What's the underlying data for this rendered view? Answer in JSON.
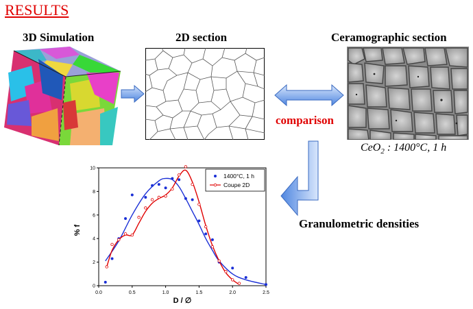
{
  "title": "RESULTS",
  "panels": {
    "sim3d": {
      "label": "3D Simulation"
    },
    "section2d": {
      "label": "2D section"
    },
    "cerama": {
      "label": "Ceramographic section",
      "caption_prefix": "CeO",
      "caption_sub": "2",
      "caption_rest": " : 1400°C, 1 h"
    }
  },
  "comparison_label": "comparison",
  "granulometric_label": "Granulometric densities",
  "chart_data": {
    "type": "line",
    "xlabel": "D / ∅",
    "ylabel": "% f",
    "xlim": [
      0,
      2.5
    ],
    "ylim": [
      0,
      10
    ],
    "xticks": [
      "0.0",
      "0.5",
      "1.0",
      "1.5",
      "2.0",
      "2.5"
    ],
    "yticks": [
      "0",
      "2",
      "4",
      "6",
      "8",
      "10"
    ],
    "legend_position": "top-right",
    "series": [
      {
        "name": "1400°C, 1 h",
        "color": "#1a2fd6",
        "marker": "dot",
        "points": [
          [
            0.1,
            0.3
          ],
          [
            0.2,
            2.3
          ],
          [
            0.3,
            4.0
          ],
          [
            0.4,
            5.7
          ],
          [
            0.5,
            7.7
          ],
          [
            0.7,
            7.5
          ],
          [
            0.8,
            8.5
          ],
          [
            0.9,
            8.6
          ],
          [
            1.0,
            8.3
          ],
          [
            1.1,
            9.1
          ],
          [
            1.2,
            9.0
          ],
          [
            1.3,
            7.4
          ],
          [
            1.4,
            7.3
          ],
          [
            1.5,
            5.5
          ],
          [
            1.6,
            4.4
          ],
          [
            1.7,
            3.9
          ],
          [
            1.8,
            2.0
          ],
          [
            2.0,
            1.5
          ],
          [
            2.2,
            0.7
          ],
          [
            2.5,
            0.1
          ]
        ],
        "fit": [
          [
            0.1,
            2.1
          ],
          [
            0.3,
            3.8
          ],
          [
            0.5,
            6.0
          ],
          [
            0.7,
            7.8
          ],
          [
            0.9,
            8.9
          ],
          [
            1.0,
            9.1
          ],
          [
            1.1,
            9.0
          ],
          [
            1.2,
            8.4
          ],
          [
            1.3,
            7.4
          ],
          [
            1.4,
            6.3
          ],
          [
            1.5,
            5.2
          ],
          [
            1.6,
            4.0
          ],
          [
            1.7,
            3.0
          ],
          [
            1.8,
            2.1
          ],
          [
            2.0,
            1.0
          ],
          [
            2.2,
            0.5
          ],
          [
            2.5,
            0.1
          ]
        ]
      },
      {
        "name": "Coupe 2D",
        "color": "#e00000",
        "marker": "circle",
        "points": [
          [
            0.12,
            1.6
          ],
          [
            0.2,
            3.5
          ],
          [
            0.3,
            3.9
          ],
          [
            0.4,
            4.4
          ],
          [
            0.5,
            4.3
          ],
          [
            0.6,
            5.8
          ],
          [
            0.7,
            6.6
          ],
          [
            0.8,
            7.3
          ],
          [
            0.9,
            7.5
          ],
          [
            1.0,
            7.6
          ],
          [
            1.1,
            8.2
          ],
          [
            1.2,
            9.4
          ],
          [
            1.3,
            10.1
          ],
          [
            1.4,
            8.6
          ],
          [
            1.5,
            6.9
          ],
          [
            1.6,
            5.0
          ],
          [
            1.7,
            3.3
          ],
          [
            1.8,
            2.1
          ],
          [
            1.9,
            1.2
          ],
          [
            2.0,
            0.5
          ],
          [
            2.1,
            0.2
          ]
        ],
        "fit": [
          [
            0.12,
            1.6
          ],
          [
            0.2,
            3.0
          ],
          [
            0.3,
            3.9
          ],
          [
            0.4,
            4.3
          ],
          [
            0.5,
            4.3
          ],
          [
            0.6,
            5.3
          ],
          [
            0.7,
            6.3
          ],
          [
            0.8,
            7.0
          ],
          [
            0.9,
            7.4
          ],
          [
            1.0,
            7.7
          ],
          [
            1.1,
            8.3
          ],
          [
            1.2,
            9.3
          ],
          [
            1.3,
            9.8
          ],
          [
            1.4,
            8.8
          ],
          [
            1.5,
            7.1
          ],
          [
            1.6,
            5.1
          ],
          [
            1.7,
            3.4
          ],
          [
            1.8,
            2.1
          ],
          [
            1.9,
            1.1
          ],
          [
            2.0,
            0.5
          ],
          [
            2.1,
            0.1
          ]
        ]
      }
    ]
  },
  "colors": {
    "title_red": "#e00000",
    "arrow_blue": "#4f86e0",
    "arrow_light": "#bcd6fb"
  }
}
